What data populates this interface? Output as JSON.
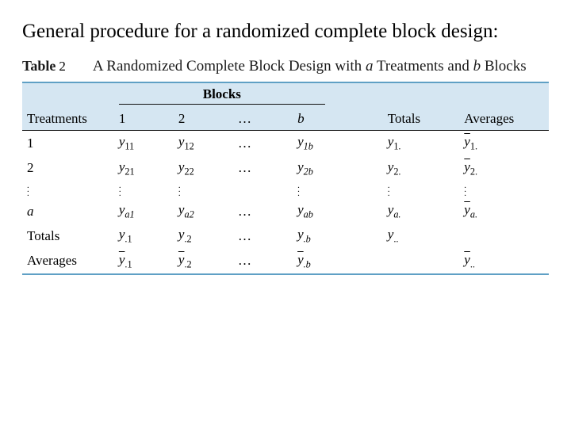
{
  "title": "General procedure for a randomized complete block design:",
  "tableLabel": {
    "word": "Table",
    "number": "2"
  },
  "caption": {
    "pre": "A Randomized Complete Block Design with ",
    "a": "a",
    "mid": " Treatments and ",
    "b": "b",
    "post": " Blocks"
  },
  "blocksHeader": "Blocks",
  "colHeaders": {
    "treatments": "Treatments",
    "c1": "1",
    "c2": "2",
    "cd": "…",
    "cb": "b",
    "totals": "Totals",
    "averages": "Averages"
  },
  "rowLabels": {
    "r1": "1",
    "r2": "2",
    "ra": "a",
    "totals": "Totals",
    "averages": "Averages"
  },
  "cells": {
    "y11": "y",
    "y11s": "11",
    "y12": "y",
    "y12s": "12",
    "y1b": "y",
    "y1bs": "1b",
    "y21": "y",
    "y21s": "21",
    "y22": "y",
    "y22s": "22",
    "y2b": "y",
    "y2bs": "2b",
    "ya1": "y",
    "ya1s": "a1",
    "ya2": "y",
    "ya2s": "a2",
    "yab": "y",
    "yabs": "ab",
    "dots": "…"
  },
  "rowTotals": {
    "t1": "y",
    "t1s": "1.",
    "t2": "y",
    "t2s": "2.",
    "ta": "y",
    "tas": "a."
  },
  "rowAverages": {
    "a1": "y",
    "a1s": "1.",
    "a2": "y",
    "a2s": "2.",
    "aa": "y",
    "aas": "a."
  },
  "colTotals": {
    "c1": "y",
    "c1s": ".1",
    "c2": "y",
    "c2s": ".2",
    "cb": "y",
    "cbs": ".b",
    "grand": "y",
    "grands": ".."
  },
  "colAverages": {
    "c1": "y",
    "c1s": ".1",
    "c2": "y",
    "c2s": ".2",
    "cb": "y",
    "cbs": ".b",
    "grand": "y",
    "grands": ".."
  },
  "style": {
    "blueRule": "#5fa0c5",
    "bandColor": "#d5e6f2",
    "titleFontSize": 25,
    "bodyFontSize": 17
  }
}
